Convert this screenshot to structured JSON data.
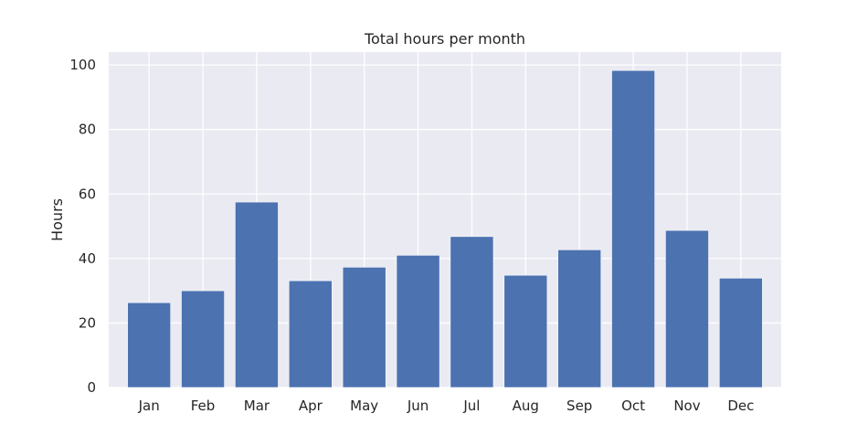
{
  "chart_data": {
    "type": "bar",
    "title": "Total hours per month",
    "xlabel": "",
    "ylabel": "Hours",
    "categories": [
      "Jan",
      "Feb",
      "Mar",
      "Apr",
      "May",
      "Jun",
      "Jul",
      "Aug",
      "Sep",
      "Oct",
      "Nov",
      "Dec"
    ],
    "values": [
      26.3,
      30.0,
      57.5,
      33.1,
      37.3,
      41.0,
      46.8,
      34.8,
      42.7,
      98.3,
      48.7,
      33.9
    ],
    "yticks": [
      "0",
      "20",
      "40",
      "60",
      "80",
      "100"
    ],
    "ylim": [
      0,
      104
    ],
    "grid": true,
    "colors": {
      "bar": "#4c72b0",
      "plot_background": "#eaeaf2",
      "grid": "#ffffff"
    }
  }
}
